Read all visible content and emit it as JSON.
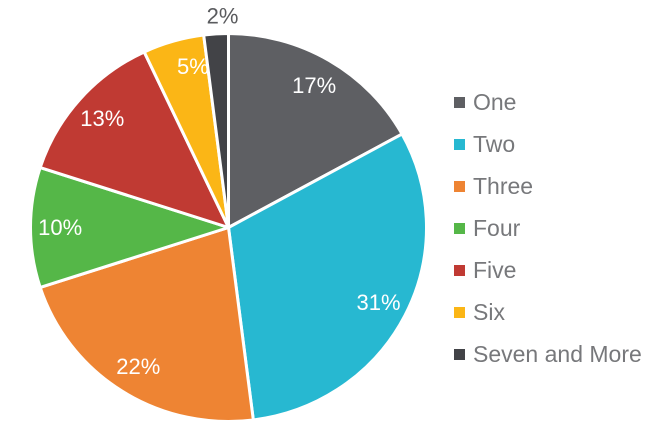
{
  "chart_data": {
    "type": "pie",
    "title": "",
    "direction": "clockwise",
    "start_angle_deg": 0,
    "legend_position": "right",
    "categories": [
      "One",
      "Two",
      "Three",
      "Four",
      "Five",
      "Six",
      "Seven and More"
    ],
    "values": [
      17,
      31,
      22,
      10,
      13,
      5,
      2
    ],
    "unit": "%",
    "slices": [
      {
        "label": "One",
        "value": 17,
        "percent_label": "17%",
        "color": "#5E5F63",
        "label_placement": "inside",
        "label_radius": 0.85,
        "label_angle_offset": 0
      },
      {
        "label": "Two",
        "value": 31,
        "percent_label": "31%",
        "color": "#27B8D1",
        "label_placement": "inside",
        "label_radius": 0.85,
        "label_angle_offset": 0
      },
      {
        "label": "Three",
        "value": 22,
        "percent_label": "22%",
        "color": "#EE8433",
        "label_placement": "inside",
        "label_radius": 0.85,
        "label_angle_offset": 0
      },
      {
        "label": "Four",
        "value": 10,
        "percent_label": "10%",
        "color": "#55B748",
        "label_placement": "inside",
        "label_radius": 0.85,
        "label_angle_offset": 0
      },
      {
        "label": "Five",
        "value": 13,
        "percent_label": "13%",
        "color": "#C03A33",
        "label_placement": "inside",
        "label_radius": 0.85,
        "label_angle_offset": 0
      },
      {
        "label": "Six",
        "value": 5,
        "percent_label": "5%",
        "color": "#FBB616",
        "label_placement": "inside",
        "label_radius": 0.85,
        "label_angle_offset": 4
      },
      {
        "label": "Seven and More",
        "value": 2,
        "percent_label": "2%",
        "color": "#424347",
        "label_placement": "outside",
        "label_radius": 1.09,
        "label_angle_offset": 2
      }
    ],
    "style": {
      "background": "#FFFFFF",
      "slice_border_color": "#FFFFFF",
      "slice_border_width": 3,
      "inside_label_color": "#FFFFFF",
      "outside_label_color": "#5A5B5E",
      "legend_text_color": "#77787B",
      "percent_label_font_px": 22,
      "legend_font_px": 23
    },
    "geometry": {
      "cx": 228.5,
      "cy": 227.5,
      "rx": 198,
      "ry": 194
    }
  }
}
